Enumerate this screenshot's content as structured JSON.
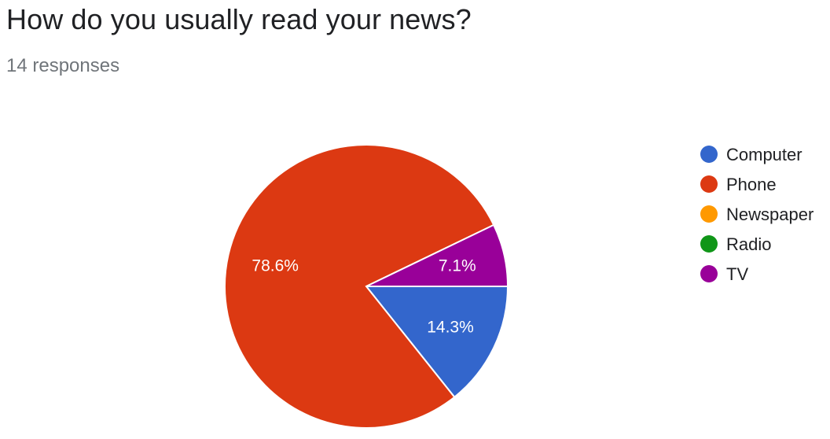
{
  "header": {
    "title": "How do you usually read your news?",
    "responses": "14 responses"
  },
  "chart_data": {
    "type": "pie",
    "title": "How do you usually read your news?",
    "categories": [
      "Computer",
      "Phone",
      "Newspaper",
      "Radio",
      "TV"
    ],
    "values": [
      2,
      11,
      0,
      0,
      1
    ],
    "percent_labels": [
      "14.3%",
      "78.6%",
      "",
      "",
      "7.1%"
    ],
    "colors": [
      "#3366cc",
      "#dc3912",
      "#ff9900",
      "#109618",
      "#990099"
    ],
    "legend_position": "right",
    "start": "3 o'clock",
    "direction": "clockwise"
  }
}
